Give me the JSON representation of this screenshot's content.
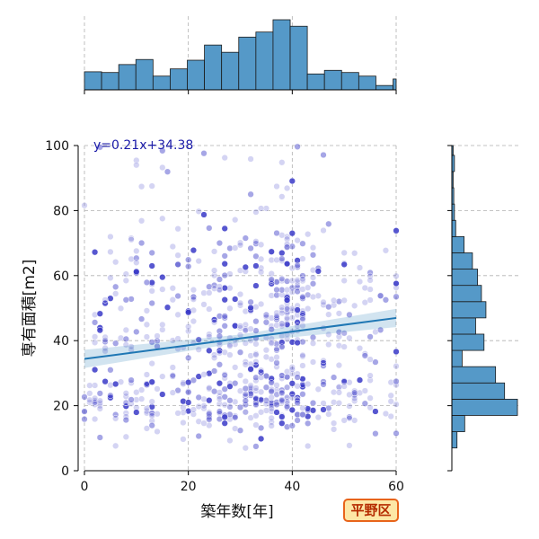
{
  "chart_data": {
    "type": "scatter",
    "subtype": "joint plot with marginal histograms and linear regression",
    "xlabel": "築年数[年]",
    "ylabel": "専有面積[m2]",
    "xlim": [
      0,
      60
    ],
    "ylim": [
      0,
      100
    ],
    "xticks": [
      "0",
      "20",
      "40",
      "60"
    ],
    "yticks": [
      "0",
      "20",
      "40",
      "60",
      "80",
      "100"
    ],
    "grid": true,
    "regression": {
      "slope": 0.21,
      "intercept": 34.38,
      "label": "y=0.21x+34.38"
    },
    "point_color": "#3a3ac8",
    "line_color": "#1f77b4",
    "hist_color": "#5599c8",
    "x_hist": {
      "bin_edges": [
        0,
        3.3,
        6.6,
        9.9,
        13.2,
        16.5,
        19.8,
        23.1,
        26.4,
        29.7,
        33.0,
        36.3,
        39.6,
        42.9,
        46.2,
        49.5,
        52.8,
        56.1,
        59.4,
        60
      ],
      "counts": [
        25,
        24,
        35,
        42,
        19,
        29,
        41,
        62,
        52,
        73,
        80,
        97,
        88,
        22,
        27,
        24,
        19,
        6,
        15
      ]
    },
    "y_hist": {
      "bin_edges": [
        7,
        12,
        17,
        22,
        27,
        32,
        37,
        42,
        47,
        52,
        57,
        62,
        67,
        72,
        77,
        82,
        87,
        92,
        97,
        100
      ],
      "counts": [
        8,
        20,
        102,
        82,
        68,
        16,
        50,
        37,
        53,
        46,
        40,
        32,
        19,
        6,
        4,
        3,
        2,
        4,
        2
      ]
    }
  },
  "badge_text": "平野区",
  "colors": {
    "badge_border": "#e8641b",
    "badge_bg": "#fde7a6",
    "badge_text": "#b52b00"
  }
}
